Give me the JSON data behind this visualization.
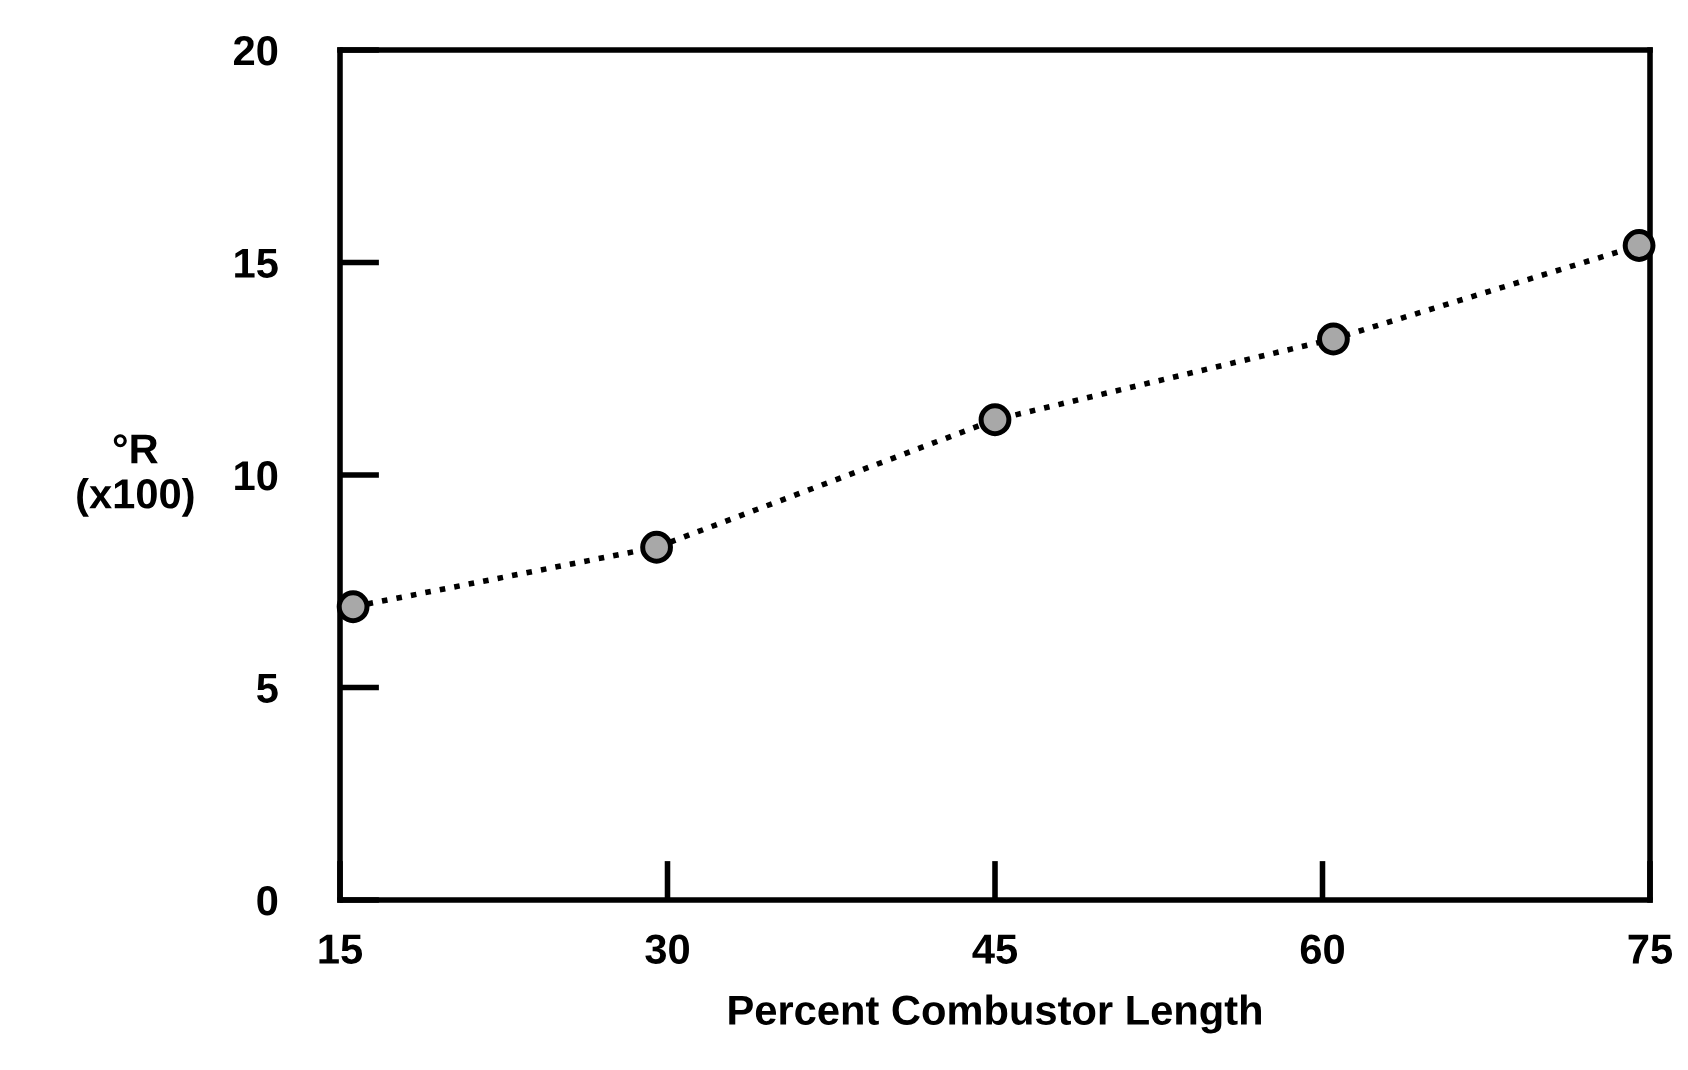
{
  "chart_data": {
    "type": "line",
    "xlabel": "Percent Combustor Length",
    "ylabel": "°R\n(x100)",
    "x": [
      15.6,
      29.5,
      45,
      60.5,
      74.5
    ],
    "series": [
      {
        "color": "#000000",
        "values": [
          6.9,
          8.3,
          11.3,
          13.2,
          15.4
        ]
      }
    ],
    "xlim": [
      15,
      75
    ],
    "xticks": [
      15,
      30,
      45,
      60,
      75
    ],
    "ylim": [
      0,
      20
    ],
    "yticks": [
      0,
      5,
      10,
      15,
      20
    ],
    "grid": false,
    "legend": false,
    "marker": "circle",
    "line_style": "dotted"
  }
}
